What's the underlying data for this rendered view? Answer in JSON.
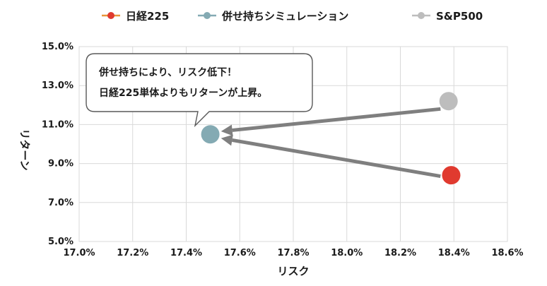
{
  "chart_data": {
    "type": "scatter",
    "xlabel": "リスク",
    "ylabel": "リターン",
    "xlim": [
      17.0,
      18.6
    ],
    "ylim": [
      5.0,
      15.0
    ],
    "x_ticks": [
      "17.0%",
      "17.2%",
      "17.4%",
      "17.6%",
      "17.8%",
      "18.0%",
      "18.2%",
      "18.4%",
      "18.6%"
    ],
    "y_ticks": [
      "15.0%",
      "13.0%",
      "11.0%",
      "9.0%",
      "7.0%",
      "5.0%"
    ],
    "grid": true,
    "legend_position": "top",
    "series": [
      {
        "name": "日経225",
        "x": 18.39,
        "y": 8.4,
        "color": "#e03a2f",
        "legend_line_color": "#e8963a"
      },
      {
        "name": "併せ持ちシミュレーション",
        "x": 17.49,
        "y": 10.5,
        "color": "#84aab3",
        "legend_line_color": "#84aab3"
      },
      {
        "name": "S&P500",
        "x": 18.38,
        "y": 12.2,
        "color": "#bdbdbd",
        "legend_line_color": "#bdbdbd"
      }
    ],
    "arrows": [
      {
        "from": [
          18.35,
          11.8
        ],
        "to": [
          17.53,
          10.65
        ],
        "color": "#7f7f7f"
      },
      {
        "from": [
          18.35,
          8.35
        ],
        "to": [
          17.53,
          10.3
        ],
        "color": "#7f7f7f"
      }
    ],
    "callout": {
      "lines": [
        "併せ持ちにより、リスク低下！",
        "日経225単体よりもリターンが上昇。"
      ]
    }
  }
}
